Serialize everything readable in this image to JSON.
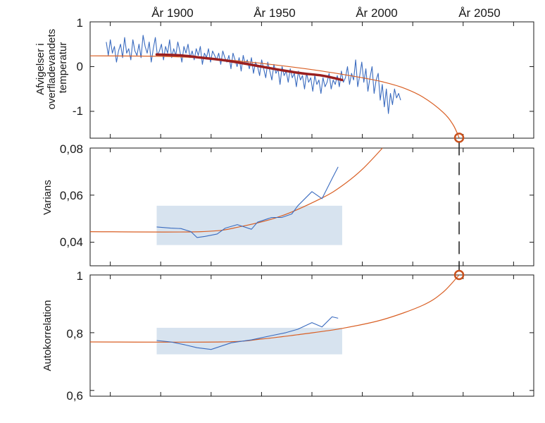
{
  "chart_data": [
    {
      "type": "line",
      "ylabel": [
        "Afvigelser i",
        "overfladevandets",
        "temperatur"
      ],
      "ylim": [
        -1.6,
        1.0
      ],
      "yticks": [
        1,
        0,
        -1
      ],
      "ytick_labels": [
        "1",
        "0",
        "-1"
      ],
      "xlim": [
        1865,
        2085
      ],
      "xtick_labels": [
        "År 1900",
        "År 1950",
        "År 2000",
        "År 2050"
      ],
      "xtick_years": [
        1900,
        1950,
        2000,
        2050
      ],
      "series": [
        {
          "role": "observed",
          "x_range": [
            1873,
            2019
          ],
          "values": [
            0.55,
            0.25,
            0.6,
            0.3,
            0.45,
            0.1,
            0.35,
            0.5,
            0.2,
            0.65,
            0.3,
            0.4,
            0.15,
            0.6,
            0.35,
            0.25,
            0.5,
            0.2,
            0.7,
            0.45,
            0.3,
            0.55,
            0.1,
            0.4,
            0.65,
            0.25,
            0.35,
            0.5,
            0.15,
            0.45,
            0.3,
            0.6,
            0.2,
            0.4,
            0.25,
            0.55,
            0.35,
            0.1,
            0.45,
            0.3,
            0.5,
            0.2,
            0.35,
            0.15,
            0.4,
            0.25,
            0.45,
            0.05,
            0.3,
            0.2,
            0.4,
            0.1,
            0.35,
            0.25,
            0.15,
            0.3,
            0.05,
            0.35,
            0.2,
            0.1,
            0.25,
            -0.05,
            0.3,
            0.15,
            0.0,
            0.2,
            -0.1,
            0.25,
            0.05,
            0.15,
            -0.05,
            0.2,
            -0.15,
            0.1,
            0.0,
            -0.2,
            0.15,
            -0.05,
            -0.25,
            0.1,
            -0.1,
            -0.3,
            0.05,
            -0.15,
            -0.05,
            -0.4,
            0.0,
            -0.2,
            -0.1,
            -0.35,
            -0.05,
            -0.25,
            -0.15,
            -0.45,
            -0.1,
            -0.3,
            -0.2,
            -0.5,
            -0.15,
            -0.35,
            -0.25,
            -0.55,
            -0.2,
            -0.4,
            -0.3,
            -0.6,
            -0.25,
            -0.45,
            -0.35,
            -0.15,
            -0.5,
            -0.3,
            -0.4,
            -0.2,
            -0.45,
            -0.1,
            -0.35,
            -0.25,
            0.0,
            -0.4,
            -0.15,
            -0.3,
            0.15,
            -0.45,
            -0.2,
            0.1,
            -0.35,
            -0.05,
            -0.55,
            -0.25,
            0.0,
            -0.6,
            -0.3,
            -0.15,
            -0.75,
            -0.4,
            -0.9,
            -0.5,
            -1.05,
            -0.6,
            -0.85,
            -0.5,
            -0.7,
            -0.6,
            -0.75
          ]
        },
        {
          "role": "trend",
          "x": [
            1898,
            1910,
            1920,
            1930,
            1940,
            1950,
            1960,
            1970,
            1980,
            1990
          ],
          "values": [
            0.27,
            0.25,
            0.2,
            0.15,
            0.08,
            0.0,
            -0.08,
            -0.15,
            -0.2,
            -0.3
          ]
        },
        {
          "role": "model",
          "x": [
            1865,
            1900,
            1920,
            1940,
            1960,
            1980,
            2000,
            2010,
            2020,
            2030,
            2040,
            2045,
            2048
          ],
          "values": [
            0.24,
            0.23,
            0.19,
            0.12,
            0.02,
            -0.1,
            -0.25,
            -0.34,
            -0.47,
            -0.68,
            -1.02,
            -1.3,
            -1.59
          ]
        }
      ],
      "marker": {
        "x": 2048,
        "y": -1.59
      }
    },
    {
      "type": "line",
      "ylabel": "Varians",
      "ylim": [
        0.03,
        0.08
      ],
      "yticks": [
        0.08,
        0.06,
        0.04
      ],
      "ytick_labels": [
        "0,08",
        "0,06",
        "0,04"
      ],
      "xlim": [
        1865,
        2085
      ],
      "band": {
        "x": [
          1898,
          1990
        ],
        "y": [
          0.0388,
          0.0555
        ]
      },
      "series": [
        {
          "role": "observed",
          "x": [
            1898,
            1905,
            1910,
            1915,
            1918,
            1922,
            1928,
            1932,
            1938,
            1945,
            1948,
            1955,
            1960,
            1965,
            1968,
            1975,
            1980,
            1985,
            1988
          ],
          "values": [
            0.0465,
            0.046,
            0.0458,
            0.0445,
            0.042,
            0.0425,
            0.0435,
            0.046,
            0.0475,
            0.0455,
            0.0485,
            0.0505,
            0.0505,
            0.052,
            0.0555,
            0.0615,
            0.0585,
            0.067,
            0.072
          ]
        },
        {
          "role": "model",
          "x": [
            1865,
            1920,
            1940,
            1960,
            1980,
            1990,
            2000,
            2010
          ],
          "values": [
            0.0445,
            0.0445,
            0.0467,
            0.0512,
            0.0588,
            0.064,
            0.071,
            0.0805
          ]
        }
      ]
    },
    {
      "type": "line",
      "ylabel": "Autokorrelation",
      "ylim": [
        0.58,
        1.0
      ],
      "yticks": [
        1,
        0.8,
        0.6
      ],
      "ytick_labels": [
        "1",
        "0,8",
        "0,6"
      ],
      "xlim": [
        1865,
        2085
      ],
      "band": {
        "x": [
          1898,
          1990
        ],
        "y": [
          0.725,
          0.817
        ]
      },
      "series": [
        {
          "role": "observed",
          "x": [
            1898,
            1905,
            1912,
            1918,
            1925,
            1935,
            1945,
            1955,
            1962,
            1968,
            1975,
            1980,
            1985,
            1988
          ],
          "values": [
            0.773,
            0.768,
            0.758,
            0.748,
            0.742,
            0.765,
            0.775,
            0.79,
            0.8,
            0.812,
            0.835,
            0.82,
            0.855,
            0.85
          ]
        },
        {
          "role": "model",
          "x": [
            1865,
            1930,
            1950,
            1970,
            1990,
            2010,
            2030,
            2040,
            2048
          ],
          "values": [
            0.768,
            0.768,
            0.778,
            0.795,
            0.815,
            0.845,
            0.895,
            0.94,
            1.0
          ]
        }
      ],
      "marker": {
        "x": 2048,
        "y": 1.0
      }
    }
  ]
}
